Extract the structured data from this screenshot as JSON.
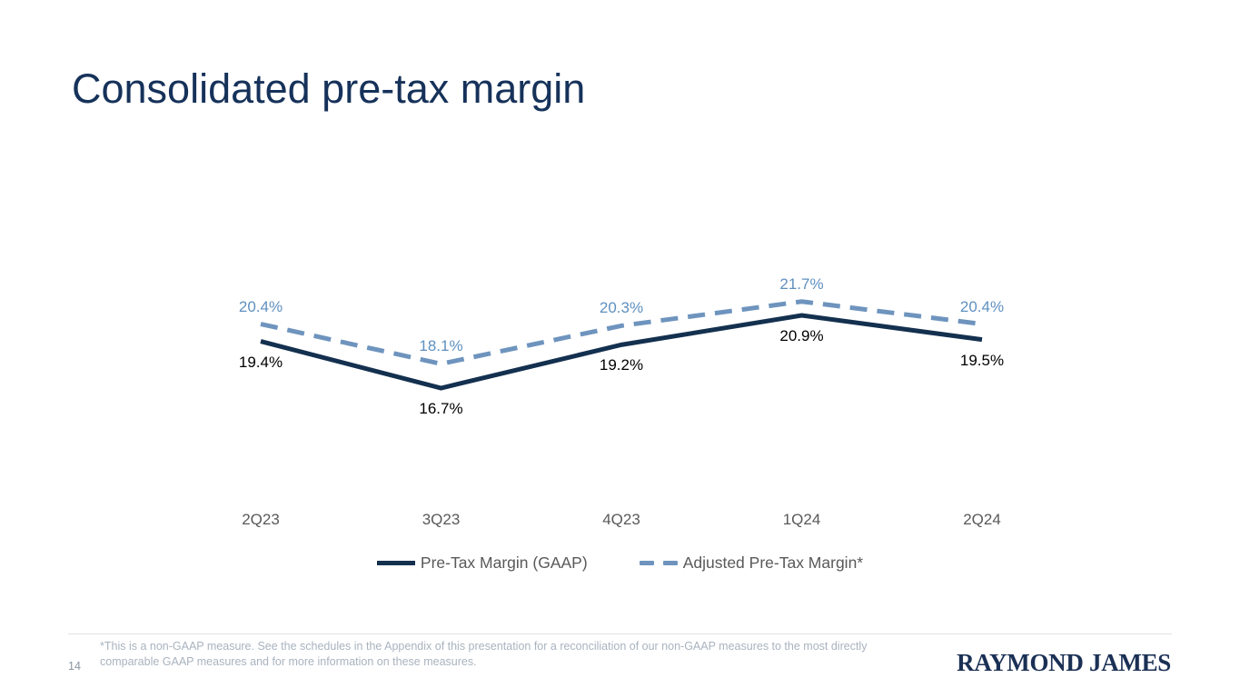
{
  "slide": {
    "title": "Consolidated pre-tax margin",
    "page_number": "14",
    "footnote": "*This is a non-GAAP measure. See the schedules in the Appendix of this presentation for a reconciliation of our non-GAAP measures to the most directly comparable GAAP measures and for more information on these measures.",
    "logo_text": "RAYMOND JAMES"
  },
  "colors": {
    "title_navy": "#16325a",
    "gaap_line_navy": "#14304f",
    "adjusted_line_blue": "#6e94be",
    "adjusted_label_blue": "#5f90bf",
    "gaap_label_black": "#000000",
    "axis_text_gray": "#595959",
    "footnote_gray": "#a9b3bf",
    "page_number_gray": "#8c97a1",
    "divider_gray": "#e3e3e3",
    "logo_navy": "#1b3055"
  },
  "chart_data": {
    "type": "line",
    "categories": [
      "2Q23",
      "3Q23",
      "4Q23",
      "1Q24",
      "2Q24"
    ],
    "series": [
      {
        "name": "Pre-Tax Margin (GAAP)",
        "style": "solid",
        "color": "#14304f",
        "values": [
          19.4,
          16.7,
          19.2,
          20.9,
          19.5
        ],
        "point_labels": [
          "19.4%",
          "16.7%",
          "19.2%",
          "20.9%",
          "19.5%"
        ],
        "label_color": "#000000"
      },
      {
        "name": "Adjusted Pre-Tax Margin*",
        "style": "dashed",
        "color": "#6e94be",
        "values": [
          20.4,
          18.1,
          20.3,
          21.7,
          20.4
        ],
        "point_labels": [
          "20.4%",
          "18.1%",
          "20.3%",
          "21.7%",
          "20.4%"
        ],
        "label_color": "#5f90bf"
      }
    ],
    "title": "Consolidated pre-tax margin",
    "xlabel": "",
    "ylabel": "",
    "ylim": [
      16.0,
      22.5
    ],
    "grid": false,
    "axes_visible": false,
    "legend_position": "bottom"
  }
}
